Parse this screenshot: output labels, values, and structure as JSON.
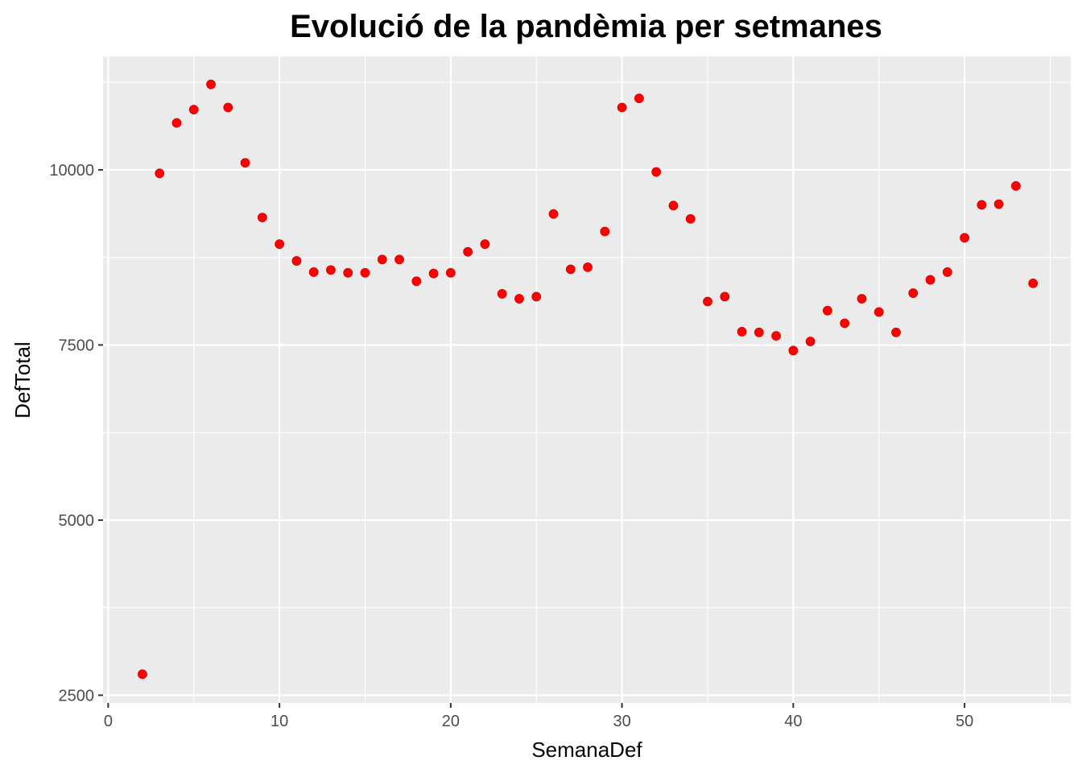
{
  "chart_data": {
    "type": "scatter",
    "title": "Evolució de la pandèmia per setmanes",
    "xlabel": "SemanaDef",
    "ylabel": "DefTotal",
    "xlim": [
      -0.3,
      56.2
    ],
    "ylim": [
      2390,
      11620
    ],
    "x_ticks": [
      0,
      10,
      20,
      30,
      40,
      50
    ],
    "y_ticks": [
      2500,
      5000,
      7500,
      10000
    ],
    "x_tick_labels": [
      "0",
      "10",
      "20",
      "30",
      "40",
      "50"
    ],
    "y_tick_labels": [
      "2500",
      "5000",
      "7500",
      "10000"
    ],
    "grid": true,
    "legend": "none",
    "colors": {
      "panel_bg": "#ebebeb",
      "grid": "#ffffff",
      "point": "#ff0000",
      "tick_label": "#4d4d4d",
      "tick_mark": "#333333"
    },
    "series": [
      {
        "x": [
          2,
          3,
          4,
          5,
          6,
          7,
          8,
          9,
          10,
          11,
          12,
          13,
          14,
          15,
          16,
          17,
          18,
          19,
          20,
          21,
          22,
          23,
          24,
          25,
          26,
          27,
          28,
          29,
          30,
          31,
          32,
          33,
          34,
          35,
          36,
          37,
          38,
          39,
          40,
          41,
          42,
          43,
          44,
          45,
          46,
          47,
          48,
          49,
          50,
          51,
          52,
          53,
          54
        ],
        "values": [
          2800,
          9950,
          10670,
          10860,
          11220,
          10890,
          10100,
          9320,
          8940,
          8700,
          8540,
          8570,
          8530,
          8530,
          8720,
          8720,
          8410,
          8520,
          8530,
          8830,
          8940,
          8230,
          8160,
          8190,
          9370,
          8580,
          8610,
          9120,
          10890,
          11020,
          9970,
          9490,
          9300,
          8120,
          8190,
          7690,
          7680,
          7630,
          7420,
          7550,
          7990,
          7810,
          8160,
          7970,
          7680,
          8240,
          8430,
          8540,
          9030,
          9500,
          9510,
          9770,
          8380
        ]
      }
    ]
  }
}
